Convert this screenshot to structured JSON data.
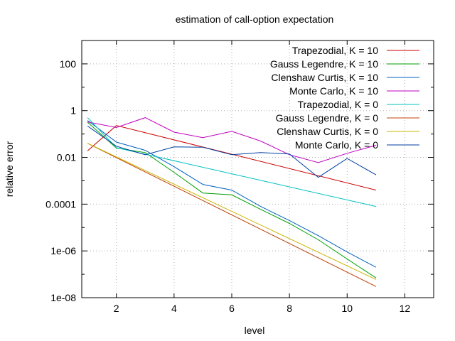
{
  "chart_data": {
    "type": "line",
    "title": "estimation of call-option expectation",
    "xlabel": "level",
    "ylabel": "relative error",
    "xlim": [
      0.8,
      13
    ],
    "ylim": [
      1e-08,
      1000
    ],
    "yscale": "log",
    "grid": true,
    "legend_position": "top-right",
    "x_ticks": [
      2,
      4,
      6,
      8,
      10,
      12
    ],
    "x_tick_labels": [
      "2",
      "4",
      "6",
      "8",
      "10",
      "12"
    ],
    "y_ticks": [
      1e-08,
      1e-06,
      0.0001,
      0.01,
      1,
      100
    ],
    "y_tick_labels": [
      "1e-08",
      "1e-06",
      "0.0001",
      "0.01",
      "1",
      "100"
    ],
    "series": [
      {
        "name": "Trapezodial, K = 10",
        "color": "#cc0000",
        "x": [
          1,
          2,
          11
        ],
        "y": [
          0.019,
          0.23,
          0.0004
        ]
      },
      {
        "name": "Gauss Legendre, K = 10",
        "color": "#00a000",
        "x": [
          1,
          2,
          3,
          4,
          5,
          6,
          7,
          8,
          9,
          10,
          11
        ],
        "y": [
          0.32,
          0.025,
          0.016,
          0.0023,
          0.0003,
          0.00025,
          6e-05,
          1.5e-05,
          3e-06,
          4.5e-07,
          7e-08
        ]
      },
      {
        "name": "Clenshaw Curtis, K = 10",
        "color": "#0060c0",
        "x": [
          1,
          2,
          3,
          4,
          5,
          6,
          7,
          8,
          9,
          10,
          11
        ],
        "y": [
          0.38,
          0.045,
          0.02,
          0.004,
          0.0007,
          0.0004,
          8e-05,
          2e-05,
          4.5e-06,
          9e-07,
          2e-07
        ]
      },
      {
        "name": "Monte Carlo, K = 10",
        "color": "#c000c0",
        "x": [
          1,
          2,
          3,
          4,
          5,
          6,
          7,
          8,
          9,
          10,
          11
        ],
        "y": [
          0.33,
          0.19,
          0.5,
          0.12,
          0.07,
          0.13,
          0.05,
          0.013,
          0.006,
          0.015,
          0.033
        ]
      },
      {
        "name": "Trapezodial, K = 0",
        "color": "#00c0c0",
        "x": [
          1,
          2,
          11
        ],
        "y": [
          0.5,
          0.026,
          8e-05
        ]
      },
      {
        "name": "Gauss Legendre, K = 0",
        "color": "#c04000",
        "x": [
          1,
          11
        ],
        "y": [
          0.04,
          3e-08
        ]
      },
      {
        "name": "Clenshaw Curtis, K = 0",
        "color": "#c8b400",
        "x": [
          1,
          11
        ],
        "y": [
          0.04,
          6e-08
        ]
      },
      {
        "name": "Monte Carlo, K = 0",
        "color": "#0040a0",
        "x": [
          1,
          2,
          3,
          4,
          5,
          6,
          7,
          8,
          9,
          10,
          11
        ],
        "y": [
          0.22,
          0.03,
          0.013,
          0.028,
          0.027,
          0.013,
          0.016,
          0.014,
          0.0014,
          0.009,
          0.0018
        ]
      }
    ]
  }
}
